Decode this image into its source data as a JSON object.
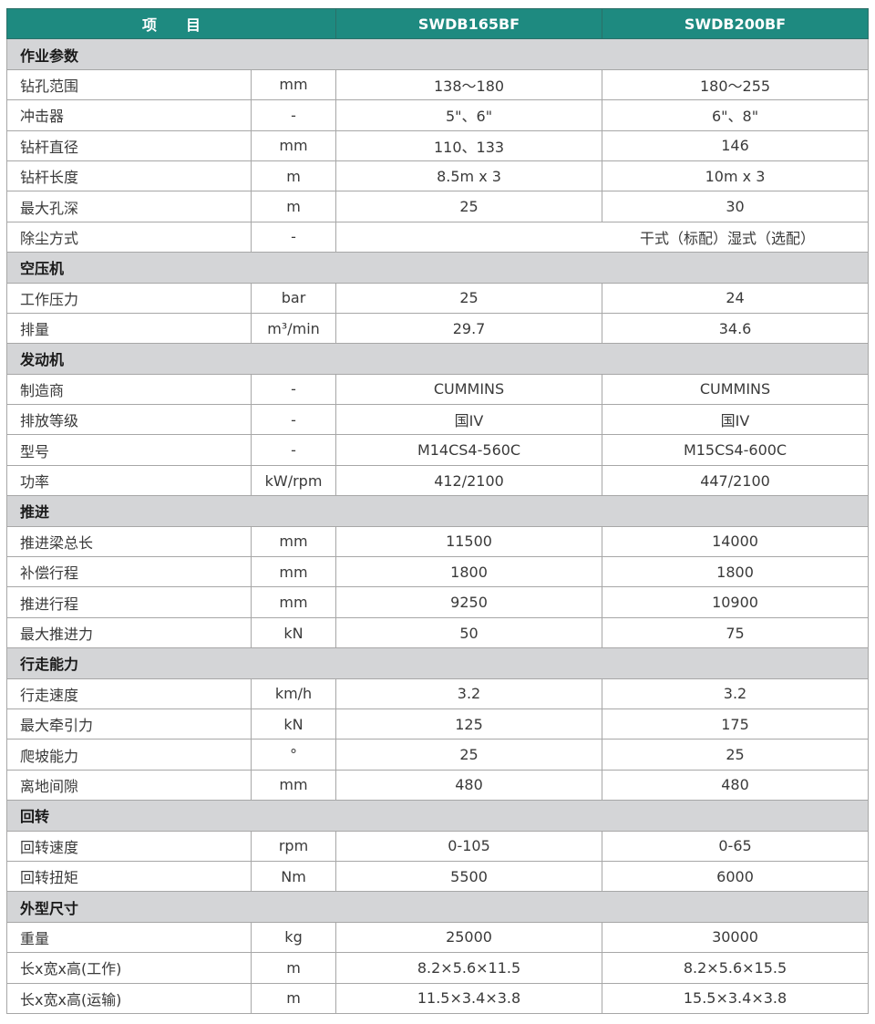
{
  "colors": {
    "header_bg": "#1e8a80",
    "section_bg": "#d4d5d7"
  },
  "header": {
    "item": "项　　目",
    "models": [
      "SWDB165BF",
      "SWDB200BF"
    ]
  },
  "rows": [
    {
      "section": "作业参数"
    },
    {
      "name": "钻孔范围",
      "unit": "mm",
      "v1": "138～180",
      "v2": "180～255"
    },
    {
      "name": "冲击器",
      "unit": "-",
      "v1": "5\"、6\"",
      "v2": "6\"、8\""
    },
    {
      "name": "钻杆直径",
      "unit": "mm",
      "v1": "110、133",
      "v2": "146"
    },
    {
      "name": "钻杆长度",
      "unit": "m",
      "v1": "8.5m x 3",
      "v2": "10m x 3"
    },
    {
      "name": "最大孔深",
      "unit": "m",
      "v1": "25",
      "v2": "30"
    },
    {
      "name": "除尘方式",
      "unit": "-",
      "merged": "干式（标配）湿式（选配）"
    },
    {
      "section": "空压机"
    },
    {
      "name": "工作压力",
      "unit": "bar",
      "v1": "25",
      "v2": "24"
    },
    {
      "name": "排量",
      "unit": "m³/min",
      "v1": "29.7",
      "v2": "34.6"
    },
    {
      "section": "发动机"
    },
    {
      "name": "制造商",
      "unit": "-",
      "v1": "CUMMINS",
      "v2": "CUMMINS"
    },
    {
      "name": "排放等级",
      "unit": "-",
      "v1": "国IV",
      "v2": "国IV"
    },
    {
      "name": "型号",
      "unit": "-",
      "v1": "M14CS4-560C",
      "v2": "M15CS4-600C"
    },
    {
      "name": "功率",
      "unit": "kW/rpm",
      "v1": "412/2100",
      "v2": "447/2100"
    },
    {
      "section": "推进"
    },
    {
      "name": "推进梁总长",
      "unit": "mm",
      "v1": "11500",
      "v2": "14000"
    },
    {
      "name": "补偿行程",
      "unit": "mm",
      "v1": "1800",
      "v2": "1800"
    },
    {
      "name": "推进行程",
      "unit": "mm",
      "v1": "9250",
      "v2": "10900"
    },
    {
      "name": "最大推进力",
      "unit": "kN",
      "v1": "50",
      "v2": "75"
    },
    {
      "section": "行走能力"
    },
    {
      "name": "行走速度",
      "unit": "km/h",
      "v1": "3.2",
      "v2": "3.2"
    },
    {
      "name": "最大牵引力",
      "unit": "kN",
      "v1": "125",
      "v2": "175"
    },
    {
      "name": "爬坡能力",
      "unit": "°",
      "v1": "25",
      "v2": "25"
    },
    {
      "name": "离地间隙",
      "unit": "mm",
      "v1": "480",
      "v2": "480"
    },
    {
      "section": "回转"
    },
    {
      "name": "回转速度",
      "unit": "rpm",
      "v1": "0-105",
      "v2": "0-65"
    },
    {
      "name": "回转扭矩",
      "unit": "Nm",
      "v1": "5500",
      "v2": "6000"
    },
    {
      "section": "外型尺寸"
    },
    {
      "name": "重量",
      "unit": "kg",
      "v1": "25000",
      "v2": "30000"
    },
    {
      "name": "长x宽x高(工作)",
      "unit": "m",
      "v1": "8.2×5.6×11.5",
      "v2": "8.2×5.6×15.5"
    },
    {
      "name": "长x宽x高(运输)",
      "unit": "m",
      "v1": "11.5×3.4×3.8",
      "v2": "15.5×3.4×3.8"
    }
  ]
}
